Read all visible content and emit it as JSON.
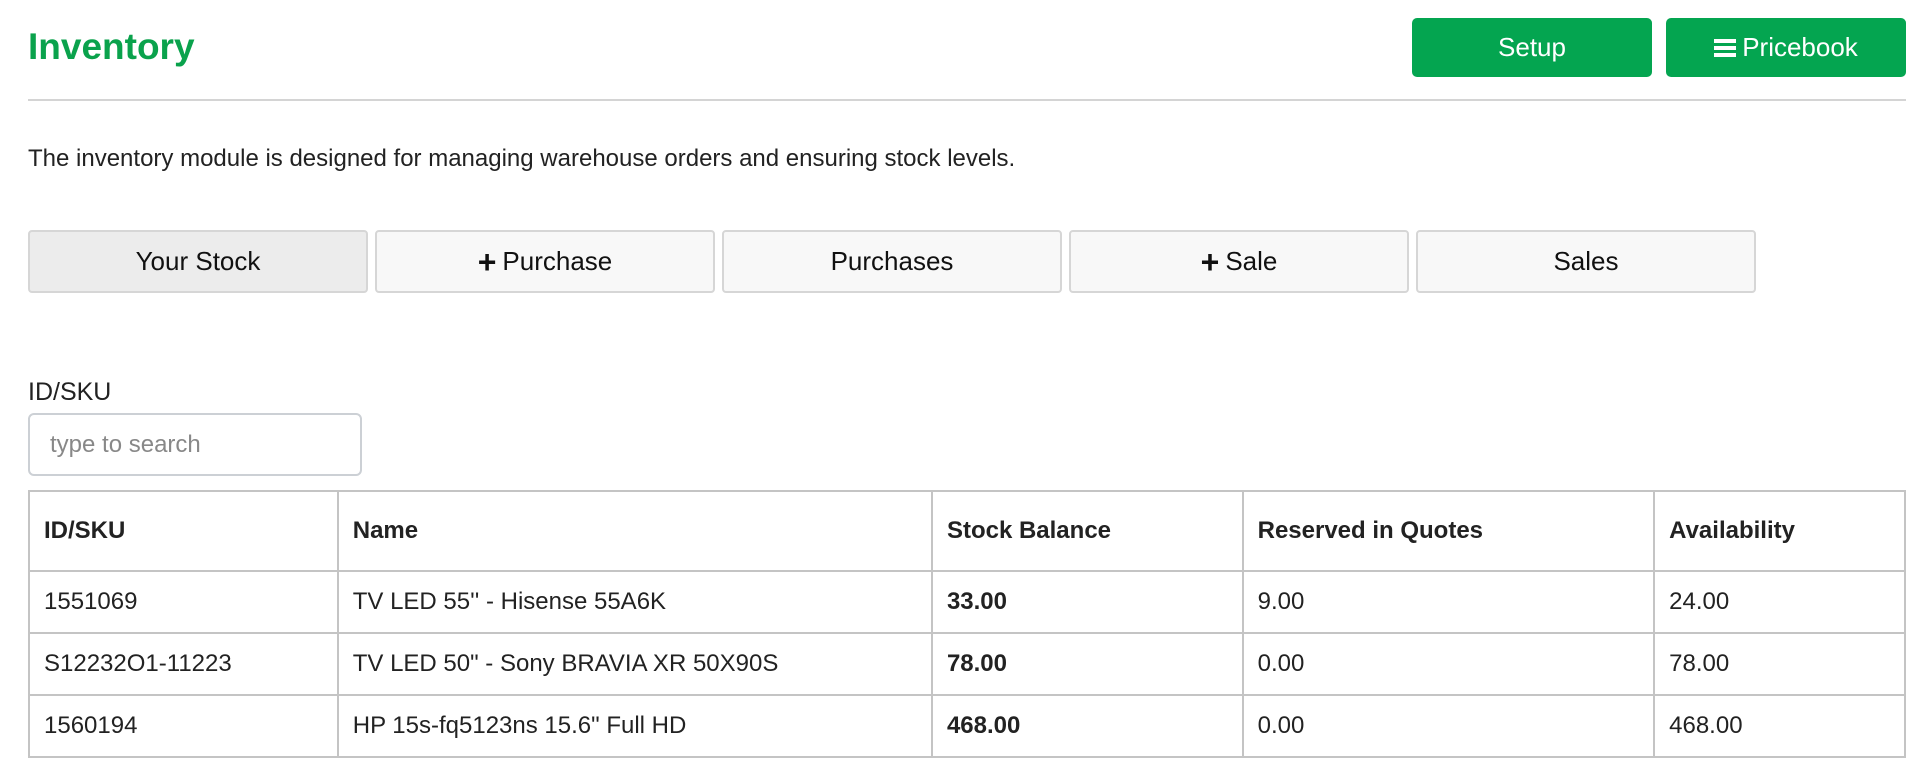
{
  "header": {
    "title": "Inventory",
    "setup_label": "Setup",
    "pricebook_label": "Pricebook",
    "pricebook_icon": "bars-icon"
  },
  "description": "The inventory module is designed for managing warehouse orders and ensuring stock levels.",
  "tabs": [
    {
      "label": "Your Stock",
      "icon": "",
      "active": true
    },
    {
      "label": "Purchase",
      "icon": "+"
    },
    {
      "label": "Purchases",
      "icon": ""
    },
    {
      "label": "Sale",
      "icon": "+"
    },
    {
      "label": "Sales",
      "icon": ""
    }
  ],
  "filter": {
    "label": "ID/SKU",
    "placeholder": "type to search",
    "value": ""
  },
  "table": {
    "columns": [
      "ID/SKU",
      "Name",
      "Stock Balance",
      "Reserved in Quotes",
      "Availability"
    ],
    "rows": [
      [
        "1551069",
        "TV LED 55'' - Hisense 55A6K",
        "33.00",
        "9.00",
        "24.00"
      ],
      [
        "S12232O1-11223",
        "TV LED 50\" - Sony BRAVIA XR 50X90S",
        "78.00",
        "0.00",
        "78.00"
      ],
      [
        "1560194",
        "HP 15s-fq5123ns 15.6\" Full HD",
        "468.00",
        "0.00",
        "468.00"
      ]
    ]
  },
  "colors": {
    "brand": "#04a550",
    "title": "#0aa24c"
  }
}
